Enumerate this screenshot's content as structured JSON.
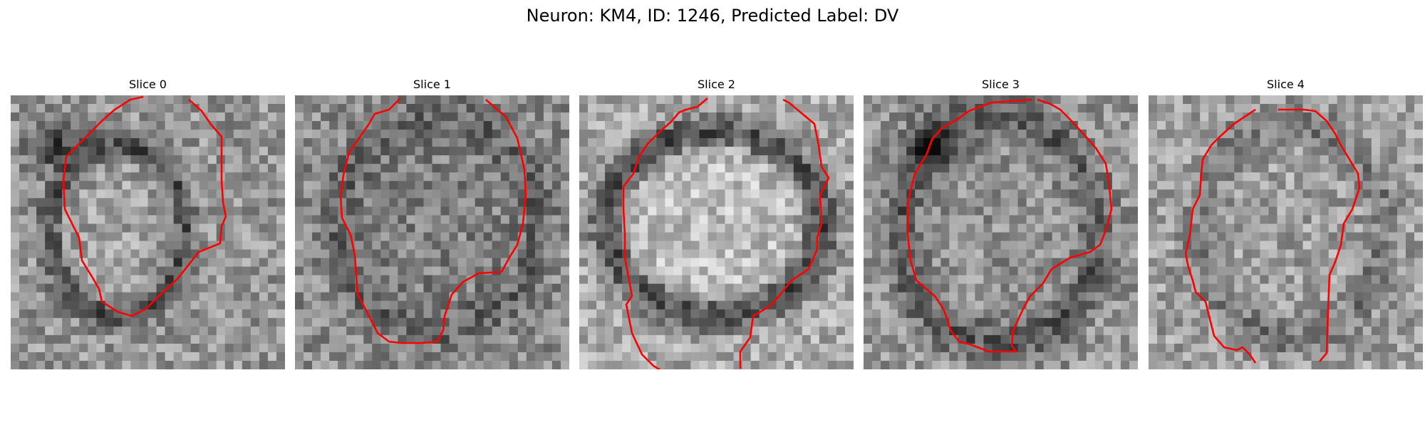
{
  "figure": {
    "title": "Neuron: KM4, ID: 1246, Predicted Label: DV"
  },
  "colors": {
    "contour": "#ff0000"
  },
  "panels": [
    {
      "title": "Slice 0"
    },
    {
      "title": "Slice 1"
    },
    {
      "title": "Slice 2"
    },
    {
      "title": "Slice 3"
    },
    {
      "title": "Slice 4"
    }
  ]
}
